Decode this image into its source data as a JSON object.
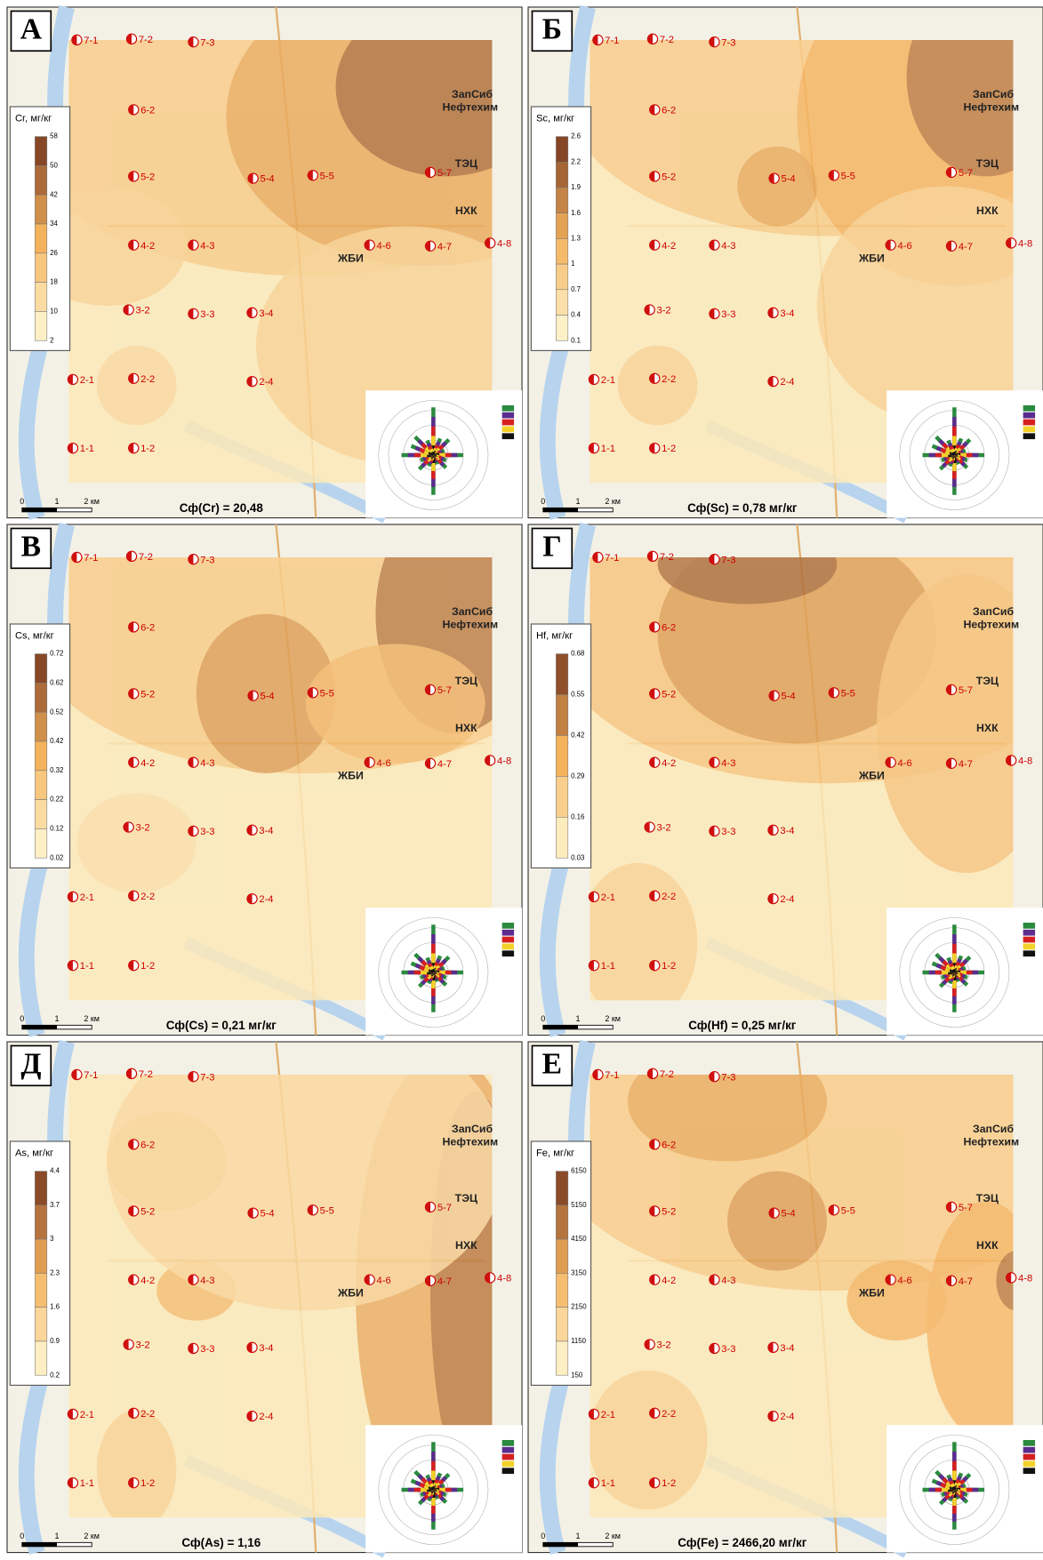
{
  "panels": [
    {
      "letter": "А",
      "legend": {
        "title": "Cr, мг/кг",
        "ticks": [
          "58",
          "50",
          "42",
          "34",
          "26",
          "18",
          "10",
          "2"
        ]
      },
      "formula": "Сф(Cr) = 20,48"
    },
    {
      "letter": "Б",
      "legend": {
        "title": "Sc, мг/кг",
        "ticks": [
          "2.6",
          "2.2",
          "1.9",
          "1.6",
          "1.3",
          "1",
          "0.7",
          "0.4",
          "0.1"
        ]
      },
      "formula": "Сф(Sc) = 0,78 мг/кг"
    },
    {
      "letter": "В",
      "legend": {
        "title": "Cs, мг/кг",
        "ticks": [
          "0.72",
          "0.62",
          "0.52",
          "0.42",
          "0.32",
          "0.22",
          "0.12",
          "0.02"
        ]
      },
      "formula": "Сф(Cs) = 0,21 мг/кг"
    },
    {
      "letter": "Г",
      "legend": {
        "title": "Hf, мг/кг",
        "ticks": [
          "0.68",
          "0.55",
          "0.42",
          "0.29",
          "0.16",
          "0.03"
        ]
      },
      "formula": "Сф(Hf) = 0,25 мг/кг"
    },
    {
      "letter": "Д",
      "legend": {
        "title": "As, мг/кг",
        "ticks": [
          "4.4",
          "3.7",
          "3",
          "2.3",
          "1.6",
          "0.9",
          "0.2"
        ]
      },
      "formula": "Сф(As) = 1,16"
    },
    {
      "letter": "Е",
      "legend": {
        "title": "Fe, мг/кг",
        "ticks": [
          "6150",
          "5150",
          "4150",
          "3150",
          "2150",
          "1150",
          "150"
        ]
      },
      "formula": "Сф(Fe) = 2466,20 мг/кг"
    }
  ],
  "sample_points": [
    "7-1",
    "7-2",
    "7-3",
    "6-2",
    "5-2",
    "5-4",
    "5-5",
    "5-7",
    "4-2",
    "4-3",
    "4-6",
    "4-7",
    "4-8",
    "3-2",
    "3-3",
    "3-4",
    "2-1",
    "2-2",
    "2-4",
    "1-1",
    "1-2"
  ],
  "places": [
    "ЗапСиб",
    "Нефтехим",
    "ТЭЦ",
    "НХК",
    "ЖБИ"
  ],
  "scale_bar": [
    "0",
    "1",
    "2 км"
  ]
}
